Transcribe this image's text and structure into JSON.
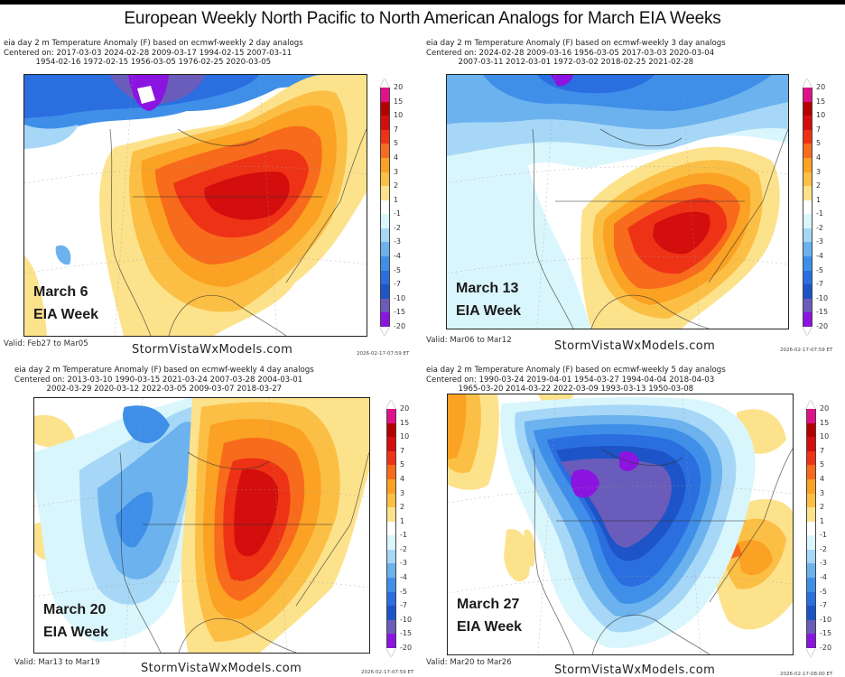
{
  "title": "European Weekly North Pacific to North American Analogs for March EIA Weeks",
  "colorbar": {
    "levels": [
      "20",
      "15",
      "10",
      "7",
      "5",
      "4",
      "3",
      "2",
      "1",
      "-1",
      "-2",
      "-3",
      "-4",
      "-5",
      "-7",
      "-10",
      "-15",
      "-20"
    ],
    "colors": [
      "#e0128a",
      "#b50000",
      "#d40d0d",
      "#ee3216",
      "#f86a1c",
      "#fba123",
      "#fcbf45",
      "#fde28c",
      "#ffffff",
      "#d9f6fd",
      "#a6d7f6",
      "#6bb2ee",
      "#3f8fe8",
      "#2a6ee0",
      "#1d54c8",
      "#6a5cba",
      "#8b14e0"
    ]
  },
  "panels": [
    {
      "header_line1": "eia day 2 m Temperature Anomaly (F) based on ecmwf-weekly 2 day analogs",
      "header_line2": "Centered on: 2017-03-03 2024-02-28 2009-03-17 1994-02-15 2007-03-11",
      "header_line3": "             1954-02-16 1972-02-15 1956-03-05 1976-02-25 2020-03-05",
      "week_label": "March 6",
      "week_sub": "EIA Week",
      "valid": "Valid: Feb27 to Mar05",
      "brand": "StormVistaWxModels.com",
      "stamp": "2026-02-17-07:59 ET",
      "summary": "Warm anomaly centered over Great Lakes/Midwest; cold over western Canada/Alaska"
    },
    {
      "header_line1": "eia day 2 m Temperature Anomaly (F) based on ecmwf-weekly 3 day analogs",
      "header_line2": "Centered on: 2024-02-28 2009-03-16 1956-03-05 2017-03-03 2020-03-04",
      "header_line3": "             2007-03-11 2012-03-01 1972-03-02 2018-02-25 2021-02-28",
      "week_label": "March 13",
      "week_sub": "EIA Week",
      "valid": "Valid: Mar06 to Mar12",
      "brand": "StormVistaWxModels.com",
      "stamp": "2026-02-17-07:59 ET",
      "summary": "Warm anomaly centered over Ohio Valley/East; cold over Canada"
    },
    {
      "header_line1": "eia day 2 m Temperature Anomaly (F) based on ecmwf-weekly 4 day analogs",
      "header_line2": "Centered on: 2013-03-10 1990-03-15 2021-03-24 2007-03-28 2004-03-01",
      "header_line3": "             2002-03-29 2020-03-12 2022-03-05 2009-03-07 2018-03-27",
      "week_label": "March 20",
      "week_sub": "EIA Week",
      "valid": "Valid: Mar13 to Mar19",
      "brand": "StormVistaWxModels.com",
      "stamp": "2026-02-17-07:59 ET",
      "summary": "Strong warmth central/eastern US and Canada; cool over the West"
    },
    {
      "header_line1": "eia day 2 m Temperature Anomaly (F) based on ecmwf-weekly 5 day analogs",
      "header_line2": "Centered on: 1990-03-24 2019-04-01 1954-03-27 1994-04-04 2018-04-03",
      "header_line3": "             1965-03-20 2014-03-22 2022-03-09 1993-03-13 1950-03-08",
      "week_label": "March 27",
      "week_sub": "EIA Week",
      "valid": "Valid: Mar20 to Mar26",
      "brand": "StormVistaWxModels.com",
      "stamp": "2026-02-17-08:00 ET",
      "summary": "Widespread cold across central/eastern North America; warm over Atlantic and Pacific"
    }
  ]
}
